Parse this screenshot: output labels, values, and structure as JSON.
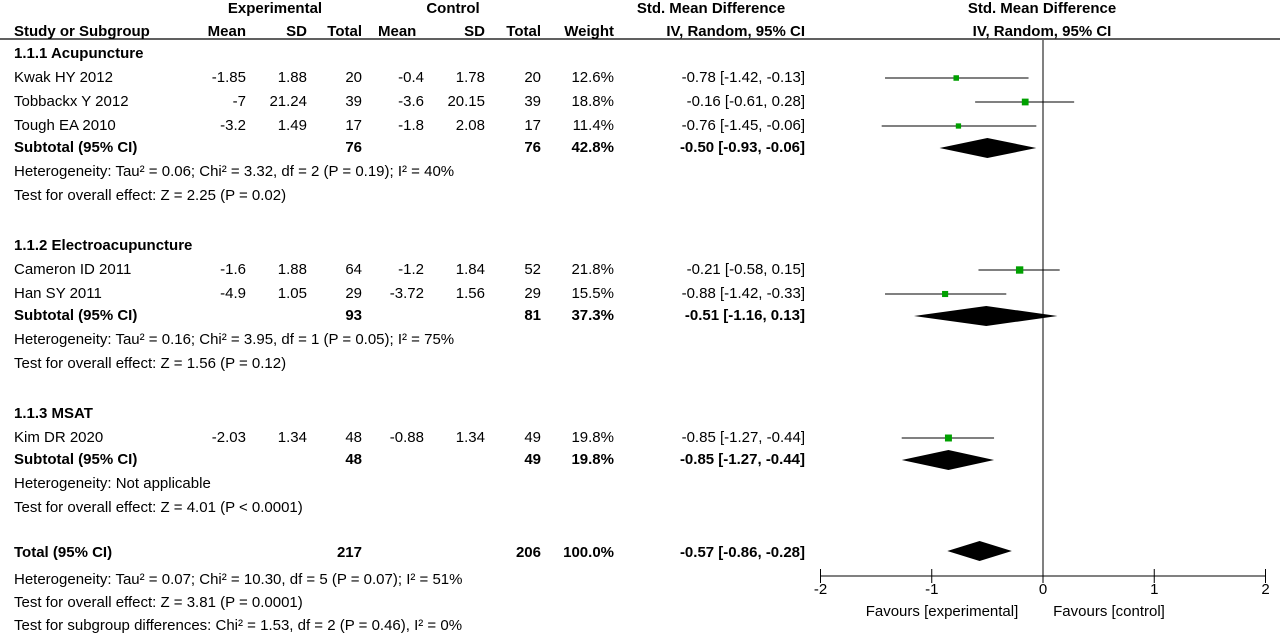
{
  "chart_data": {
    "type": "forest",
    "header": {
      "experimental": "Experimental",
      "control": "Control",
      "smd_group": "Std. Mean Difference",
      "smd_method": "IV, Random, 95% CI",
      "plot_group": "Std. Mean Difference",
      "plot_method": "IV, Random, 95% CI",
      "columns": [
        "Study or Subgroup",
        "Mean",
        "SD",
        "Total",
        "Mean",
        "SD",
        "Total",
        "Weight"
      ]
    },
    "subgroups": [
      {
        "name": "1.1.1 Acupuncture",
        "studies": [
          {
            "study": "Kwak HY 2012",
            "exp_mean": "-1.85",
            "exp_sd": "1.88",
            "exp_total": "20",
            "ctl_mean": "-0.4",
            "ctl_sd": "1.78",
            "ctl_total": "20",
            "weight": "12.6%",
            "ci_text": "-0.78 [-1.42, -0.13]",
            "smd": -0.78,
            "lo": -1.42,
            "hi": -0.13,
            "w": 12.6
          },
          {
            "study": "Tobbackx Y 2012",
            "exp_mean": "-7",
            "exp_sd": "21.24",
            "exp_total": "39",
            "ctl_mean": "-3.6",
            "ctl_sd": "20.15",
            "ctl_total": "39",
            "weight": "18.8%",
            "ci_text": "-0.16 [-0.61, 0.28]",
            "smd": -0.16,
            "lo": -0.61,
            "hi": 0.28,
            "w": 18.8
          },
          {
            "study": "Tough EA 2010",
            "exp_mean": "-3.2",
            "exp_sd": "1.49",
            "exp_total": "17",
            "ctl_mean": "-1.8",
            "ctl_sd": "2.08",
            "ctl_total": "17",
            "weight": "11.4%",
            "ci_text": "-0.76 [-1.45, -0.06]",
            "smd": -0.76,
            "lo": -1.45,
            "hi": -0.06,
            "w": 11.4
          }
        ],
        "subtotal": {
          "label": "Subtotal (95% CI)",
          "exp_total": "76",
          "ctl_total": "76",
          "weight": "42.8%",
          "ci_text": "-0.50 [-0.93, -0.06]",
          "smd": -0.5,
          "lo": -0.93,
          "hi": -0.06
        },
        "heterogeneity": "Heterogeneity: Tau² = 0.06; Chi² = 3.32, df = 2 (P = 0.19); I² = 40%",
        "overall": "Test for overall effect: Z = 2.25 (P = 0.02)"
      },
      {
        "name": "1.1.2 Electroacupuncture",
        "studies": [
          {
            "study": "Cameron ID 2011",
            "exp_mean": "-1.6",
            "exp_sd": "1.88",
            "exp_total": "64",
            "ctl_mean": "-1.2",
            "ctl_sd": "1.84",
            "ctl_total": "52",
            "weight": "21.8%",
            "ci_text": "-0.21 [-0.58, 0.15]",
            "smd": -0.21,
            "lo": -0.58,
            "hi": 0.15,
            "w": 21.8
          },
          {
            "study": "Han SY 2011",
            "exp_mean": "-4.9",
            "exp_sd": "1.05",
            "exp_total": "29",
            "ctl_mean": "-3.72",
            "ctl_sd": "1.56",
            "ctl_total": "29",
            "weight": "15.5%",
            "ci_text": "-0.88 [-1.42, -0.33]",
            "smd": -0.88,
            "lo": -1.42,
            "hi": -0.33,
            "w": 15.5
          }
        ],
        "subtotal": {
          "label": "Subtotal (95% CI)",
          "exp_total": "93",
          "ctl_total": "81",
          "weight": "37.3%",
          "ci_text": "-0.51 [-1.16, 0.13]",
          "smd": -0.51,
          "lo": -1.16,
          "hi": 0.13
        },
        "heterogeneity": "Heterogeneity: Tau² = 0.16; Chi² = 3.95, df = 1 (P = 0.05); I² = 75%",
        "overall": "Test for overall effect: Z = 1.56 (P = 0.12)"
      },
      {
        "name": "1.1.3 MSAT",
        "studies": [
          {
            "study": "Kim DR 2020",
            "exp_mean": "-2.03",
            "exp_sd": "1.34",
            "exp_total": "48",
            "ctl_mean": "-0.88",
            "ctl_sd": "1.34",
            "ctl_total": "49",
            "weight": "19.8%",
            "ci_text": "-0.85 [-1.27, -0.44]",
            "smd": -0.85,
            "lo": -1.27,
            "hi": -0.44,
            "w": 19.8
          }
        ],
        "subtotal": {
          "label": "Subtotal (95% CI)",
          "exp_total": "48",
          "ctl_total": "49",
          "weight": "19.8%",
          "ci_text": "-0.85 [-1.27, -0.44]",
          "smd": -0.85,
          "lo": -1.27,
          "hi": -0.44
        },
        "heterogeneity": "Heterogeneity: Not applicable",
        "overall": "Test for overall effect: Z = 4.01 (P < 0.0001)"
      }
    ],
    "total": {
      "label": "Total (95% CI)",
      "exp_total": "217",
      "ctl_total": "206",
      "weight": "100.0%",
      "ci_text": "-0.57 [-0.86, -0.28]",
      "smd": -0.57,
      "lo": -0.86,
      "hi": -0.28
    },
    "total_heterogeneity": "Heterogeneity: Tau² = 0.07; Chi² = 10.30, df = 5 (P = 0.07); I² = 51%",
    "total_overall": "Test for overall effect: Z = 3.81 (P = 0.0001)",
    "subgroup_differences": "Test for subgroup differences: Chi² = 1.53, df = 2 (P = 0.46), I² = 0%",
    "axis": {
      "xlim": [
        -2,
        2
      ],
      "ticks": [
        -2,
        -1,
        0,
        1,
        2
      ],
      "tick_labels": [
        "-2",
        "-1",
        "0",
        "1",
        "2"
      ],
      "left_label": "Favours [experimental]",
      "right_label": "Favours [control]"
    },
    "colors": {
      "study_marker": "#00a000",
      "diamond": "#000000",
      "line": "#000000"
    }
  }
}
